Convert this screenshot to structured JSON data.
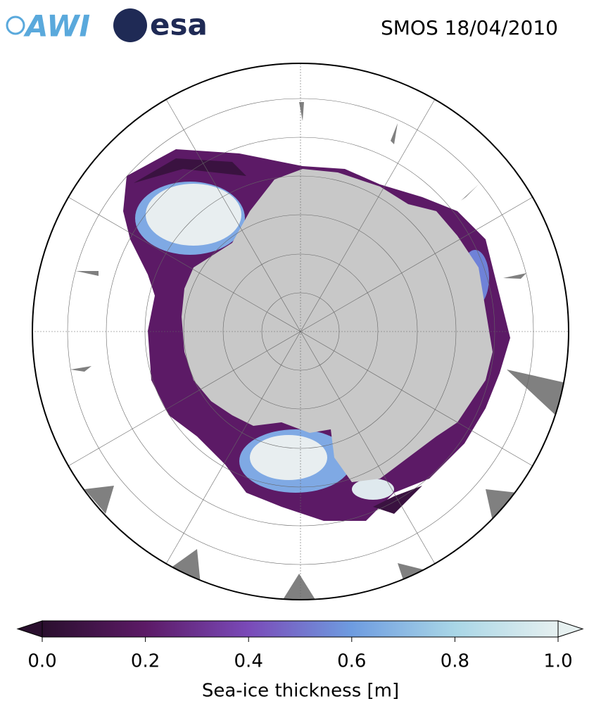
{
  "logos": [
    "AWI",
    "esa"
  ],
  "title": "SMOS 18/04/2010",
  "colorbar": {
    "label": "Sea-ice thickness [m]",
    "lim": [
      0,
      1
    ],
    "ticks": [
      {
        "value": 0,
        "label": "0.0"
      },
      {
        "value": 0.2,
        "label": "0.2"
      },
      {
        "value": 0.4,
        "label": "0.4"
      },
      {
        "value": 0.6,
        "label": "0.6"
      },
      {
        "value": 0.8,
        "label": "0.8"
      },
      {
        "value": 1,
        "label": "1.0"
      }
    ],
    "colors": [
      "#2a0f2e",
      "#5c1a66",
      "#7a4ab8",
      "#6e9ce0",
      "#a9d6e6",
      "#e6f0f0"
    ]
  }
}
